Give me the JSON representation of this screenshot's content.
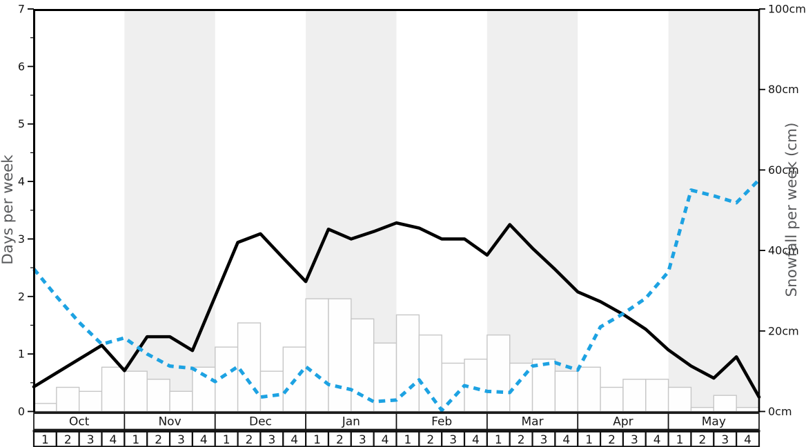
{
  "chart_data": {
    "type": "bar",
    "subtype": "bar+line combo, weekly seasonal snowfall chart",
    "title": "",
    "months": [
      "Oct",
      "Nov",
      "Dec",
      "Jan",
      "Feb",
      "Mar",
      "Apr",
      "May"
    ],
    "week_labels": [
      "1",
      "2",
      "3",
      "4"
    ],
    "left_axis": {
      "label": "Days per week",
      "min": 0,
      "max": 7,
      "major_tick_step": 1,
      "minor_tick_step": 0.5,
      "tick_labels": [
        "0",
        "1",
        "2",
        "3",
        "4",
        "5",
        "6",
        "7"
      ]
    },
    "right_axis": {
      "label": "Snowfall per week (cm)",
      "min": 0,
      "max": 100,
      "major_tick_step": 20,
      "tick_labels": [
        "0cm",
        "20cm",
        "40cm",
        "60cm",
        "80cm",
        "100cm"
      ]
    },
    "x_note": "32 weeks (4 per month, Oct-May). Bar values are one per week; line series carry 33 values: one at the start of each week plus a final value at the chart right edge.",
    "bars": {
      "name": "snowfall-per-week-bars",
      "axis": "right",
      "values_cm": [
        2,
        6,
        5,
        11,
        10,
        8,
        5,
        11,
        16,
        22,
        10,
        16,
        28,
        28,
        23,
        17,
        24,
        19,
        12,
        13,
        19,
        12,
        13,
        10,
        11,
        6,
        8,
        8,
        6,
        1,
        4,
        1
      ]
    },
    "series": [
      {
        "name": "days-per-week-black-solid-line",
        "axis": "left",
        "style": "solid",
        "color": "#000000",
        "values": [
          0.43,
          0.67,
          0.91,
          1.15,
          0.71,
          1.3,
          1.3,
          1.06,
          2.0,
          2.94,
          3.09,
          2.67,
          2.26,
          3.17,
          3.0,
          3.13,
          3.28,
          3.19,
          3.0,
          3.0,
          2.72,
          3.25,
          2.84,
          2.47,
          2.08,
          1.91,
          1.69,
          1.43,
          1.07,
          0.79,
          0.58,
          0.95,
          0.25
        ]
      },
      {
        "name": "blue-dashed-line",
        "axis": "left",
        "style": "dashed",
        "color": "#1da2e2",
        "values": [
          2.48,
          2.0,
          1.55,
          1.17,
          1.28,
          1.0,
          0.79,
          0.75,
          0.52,
          0.78,
          0.25,
          0.3,
          0.78,
          0.47,
          0.38,
          0.17,
          0.2,
          0.55,
          0.02,
          0.45,
          0.35,
          0.33,
          0.79,
          0.85,
          0.72,
          1.47,
          1.7,
          1.97,
          2.43,
          3.85,
          3.75,
          3.63,
          4.03
        ]
      }
    ],
    "shaded_months": [
      "Nov",
      "Jan",
      "Mar",
      "May"
    ],
    "legend": "none",
    "grid": "off"
  },
  "colors": {
    "band": "#efefef",
    "bar_fill": "#fefefe",
    "bar_stroke": "#c6c6c6",
    "axis": "#000000",
    "tick_text": "#151515",
    "axis_title": "#58595b",
    "blue_line": "#1da2e2",
    "black_line": "#000000",
    "table_border": "#111111",
    "table_fill": "#ffffff"
  }
}
